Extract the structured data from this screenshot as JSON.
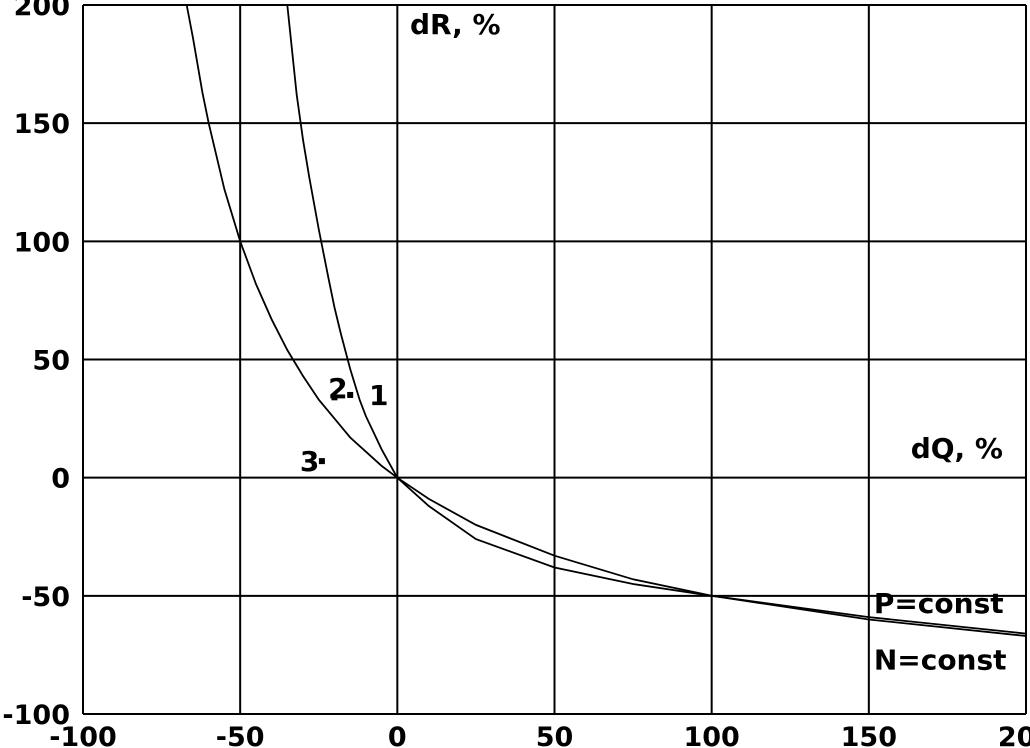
{
  "chart_data": {
    "type": "line",
    "title": "",
    "xlabel": "dQ, %",
    "ylabel": "dR, %",
    "xlim": [
      -100,
      200
    ],
    "ylim": [
      -100,
      200
    ],
    "grid": true,
    "x_ticks": [
      -100,
      -50,
      0,
      50,
      100,
      150,
      200
    ],
    "y_ticks": [
      -100,
      -50,
      0,
      50,
      100,
      150,
      200
    ],
    "series": [
      {
        "name": "P=const",
        "x": [
          -35,
          -32,
          -30,
          -28,
          -25,
          -22,
          -20,
          -18,
          -15,
          -12,
          -10,
          -5,
          0,
          10,
          25,
          50,
          75,
          100,
          150,
          200
        ],
        "y": [
          200,
          162,
          143,
          127,
          105,
          85,
          72,
          61,
          46,
          33,
          26,
          12,
          0,
          -12,
          -26,
          -38,
          -45,
          -50,
          -59,
          -66
        ]
      },
      {
        "name": "N=const",
        "x": [
          -67,
          -65,
          -62,
          -60,
          -55,
          -50,
          -45,
          -40,
          -35,
          -30,
          -25,
          -20,
          -15,
          -10,
          -5,
          0,
          10,
          25,
          50,
          75,
          100,
          150,
          200
        ],
        "y": [
          200,
          186,
          163,
          150,
          122,
          100,
          82,
          67,
          54,
          43,
          33,
          25,
          17,
          11,
          5,
          0,
          -9,
          -20,
          -33,
          -43,
          -50,
          -60,
          -67
        ]
      }
    ],
    "series_labels": [
      {
        "text": "P=const",
        "x": 150,
        "y": -53
      },
      {
        "text": "N=const",
        "x": 150,
        "y": -77
      }
    ],
    "annotations": [
      {
        "label": "2",
        "x": -22,
        "y": 38,
        "dot_x": -20,
        "dot_y": 34
      },
      {
        "label": "1",
        "x": -9,
        "y": 35,
        "dot_x": -15,
        "dot_y": 35
      },
      {
        "label": "3",
        "x": -31,
        "y": 7,
        "dot_x": -24,
        "dot_y": 7
      }
    ]
  }
}
